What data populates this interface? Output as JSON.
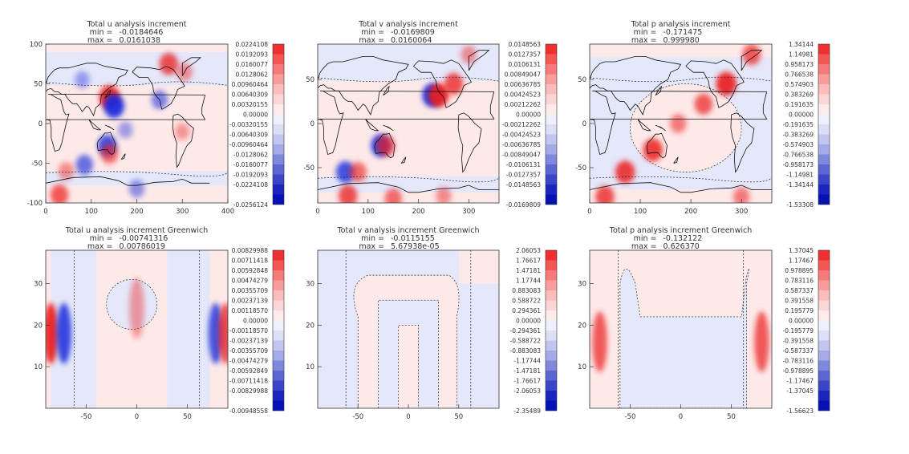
{
  "chart_data": [
    {
      "type": "heatmap",
      "title": "Total u analysis increment",
      "min_label": "min =",
      "min_value": "-0.0184646",
      "max_label": "max =",
      "max_value": "0.0161038",
      "xticks": [
        "0",
        "100",
        "200",
        "300",
        "400"
      ],
      "yticks": [
        "-100",
        "-50",
        "0",
        "50",
        "100"
      ],
      "xlim": [
        0,
        400
      ],
      "ylim": [
        -100,
        100
      ],
      "map_overlay": true,
      "colorbar": [
        "0.0224108",
        "0.0192093",
        "0.0160077",
        "0.0128062",
        "0.00960464",
        "0.00640309",
        "0.00320155",
        "0.00000",
        "-0.00320155",
        "-0.00640309",
        "-0.00960464",
        "-0.0128062",
        "-0.0160077",
        "-0.0192093",
        "-0.0224108",
        "-0.0256124"
      ],
      "blobs": [
        {
          "x": 140,
          "y": 33,
          "v": 0.9
        },
        {
          "x": 150,
          "y": 22,
          "v": -0.9
        },
        {
          "x": 135,
          "y": -28,
          "v": -0.7
        },
        {
          "x": 140,
          "y": -38,
          "v": 0.5
        },
        {
          "x": 85,
          "y": -52,
          "v": -0.5
        },
        {
          "x": 45,
          "y": -60,
          "v": 0.3
        },
        {
          "x": 300,
          "y": -10,
          "v": 0.2
        },
        {
          "x": 175,
          "y": -8,
          "v": -0.2
        },
        {
          "x": 270,
          "y": 75,
          "v": 0.7
        },
        {
          "x": 305,
          "y": 65,
          "v": 0.3
        },
        {
          "x": 250,
          "y": 30,
          "v": -0.4
        },
        {
          "x": 30,
          "y": -90,
          "v": 0.6
        },
        {
          "x": 200,
          "y": -82,
          "v": -0.3
        },
        {
          "x": 80,
          "y": 55,
          "v": -0.2
        }
      ]
    },
    {
      "type": "heatmap",
      "title": "Total v analysis increment",
      "min_label": "min =",
      "min_value": "-0.0169809",
      "max_label": "max =",
      "max_value": "0.0160064",
      "xticks": [
        "0",
        "100",
        "200",
        "300"
      ],
      "yticks": [
        "-50",
        "0",
        "50"
      ],
      "xlim": [
        0,
        360
      ],
      "ylim": [
        -90,
        90
      ],
      "map_overlay": true,
      "colorbar": [
        "0.0148563",
        "0.0127357",
        "0.0106131",
        "0.00849047",
        "0.00636785",
        "0.00424523",
        "0.00212262",
        "0.00000",
        "-0.00212262",
        "-0.00424523",
        "-0.00636785",
        "-0.00849047",
        "-0.0106131",
        "-0.0127357",
        "-0.0148563",
        "-0.0169809"
      ],
      "blobs": [
        {
          "x": 228,
          "y": 32,
          "v": -0.9
        },
        {
          "x": 240,
          "y": 32,
          "v": 0.9
        },
        {
          "x": 270,
          "y": 45,
          "v": 0.7
        },
        {
          "x": 125,
          "y": -25,
          "v": -0.8
        },
        {
          "x": 135,
          "y": -25,
          "v": 0.6
        },
        {
          "x": 55,
          "y": -55,
          "v": -0.7
        },
        {
          "x": 80,
          "y": -55,
          "v": 0.5
        },
        {
          "x": 60,
          "y": -82,
          "v": 0.7
        },
        {
          "x": 150,
          "y": -85,
          "v": 0.5
        },
        {
          "x": 250,
          "y": -82,
          "v": 0.3
        },
        {
          "x": 300,
          "y": 78,
          "v": 0.3
        }
      ]
    },
    {
      "type": "heatmap",
      "title": "Total p analysis increment",
      "min_label": "min =",
      "min_value": "-0.171475",
      "max_label": "max =",
      "max_value": "0.999980",
      "xticks": [
        "0",
        "100",
        "200",
        "300"
      ],
      "yticks": [
        "-50",
        "0",
        "50"
      ],
      "xlim": [
        0,
        360
      ],
      "ylim": [
        -90,
        90
      ],
      "map_overlay": true,
      "colorbar": [
        "1.34144",
        "1.14981",
        "0.958173",
        "0.766538",
        "0.574903",
        "0.383269",
        "0.191635",
        "0.00000",
        "-0.191635",
        "-0.383269",
        "-0.574903",
        "-0.766538",
        "-0.958173",
        "-1.14981",
        "-1.34144",
        "-1.53308"
      ],
      "blobs": [
        {
          "x": 270,
          "y": 45,
          "v": 0.9
        },
        {
          "x": 225,
          "y": 22,
          "v": 0.6
        },
        {
          "x": 175,
          "y": 0,
          "v": 0.4
        },
        {
          "x": 125,
          "y": -30,
          "v": 0.8
        },
        {
          "x": 70,
          "y": -55,
          "v": 0.8
        },
        {
          "x": 30,
          "y": -83,
          "v": 0.7
        },
        {
          "x": 300,
          "y": -83,
          "v": 0.4
        },
        {
          "x": 320,
          "y": 78,
          "v": 0.6
        }
      ]
    },
    {
      "type": "heatmap",
      "title": "Total u analysis increment Greenwich",
      "min_label": "min =",
      "min_value": "-0.00741316",
      "max_label": "max =",
      "max_value": "0.00786019",
      "xticks": [
        "-50",
        "0",
        "50"
      ],
      "yticks": [
        "10",
        "20",
        "30"
      ],
      "xlim": [
        -90,
        90
      ],
      "ylim": [
        0,
        38
      ],
      "map_overlay": false,
      "colorbar": [
        "0.00829988",
        "0.00711418",
        "0.00592848",
        "0.00474279",
        "0.00355709",
        "0.00237139",
        "0.00118570",
        "0.00000",
        "-0.00118570",
        "-0.00237139",
        "-0.00355709",
        "-0.00474279",
        "-0.00592849",
        "-0.00711418",
        "-0.00829988",
        "-0.00948558"
      ],
      "blobs": [
        {
          "x": -85,
          "y": 18,
          "v": 0.9
        },
        {
          "x": -72,
          "y": 18,
          "v": -0.8
        },
        {
          "x": 78,
          "y": 18,
          "v": -0.7
        },
        {
          "x": 88,
          "y": 18,
          "v": 0.7
        },
        {
          "x": 0,
          "y": 24,
          "v": 0.2
        }
      ]
    },
    {
      "type": "heatmap",
      "title": "Total v analysis increment Greenwich",
      "min_label": "min =",
      "min_value": "-0.0115155",
      "max_label": "max =",
      "max_value": "5.67938e-05",
      "xticks": [
        "-50",
        "0",
        "50"
      ],
      "yticks": [
        "10",
        "20",
        "30"
      ],
      "xlim": [
        -90,
        90
      ],
      "ylim": [
        0,
        38
      ],
      "map_overlay": false,
      "colorbar": [
        "2.06053",
        "1.76617",
        "1.47181",
        "1.17744",
        "0.883083",
        "0.588722",
        "0.294361",
        "0.00000",
        "-0.294361",
        "-0.588722",
        "-0.883083",
        "-1.17744",
        "-1.47181",
        "-1.76617",
        "-2.06053",
        "-2.35489"
      ],
      "blobs": []
    },
    {
      "type": "heatmap",
      "title": "Total p analysis increment Greenwich",
      "min_label": "min =",
      "min_value": "-0.132122",
      "max_label": "max =",
      "max_value": "0.626370",
      "xticks": [
        "-50",
        "0",
        "50"
      ],
      "yticks": [
        "10",
        "20",
        "30"
      ],
      "xlim": [
        -90,
        90
      ],
      "ylim": [
        0,
        38
      ],
      "map_overlay": false,
      "colorbar": [
        "1.37045",
        "1.17467",
        "0.978895",
        "0.783116",
        "0.587337",
        "0.391558",
        "0.195779",
        "0.00000",
        "-0.195779",
        "-0.391558",
        "-0.587337",
        "-0.783116",
        "-0.978895",
        "-1.17467",
        "-1.37045",
        "-1.56623"
      ],
      "blobs": [
        {
          "x": -80,
          "y": 16,
          "v": 0.6
        },
        {
          "x": 80,
          "y": 16,
          "v": 0.6
        }
      ]
    }
  ]
}
